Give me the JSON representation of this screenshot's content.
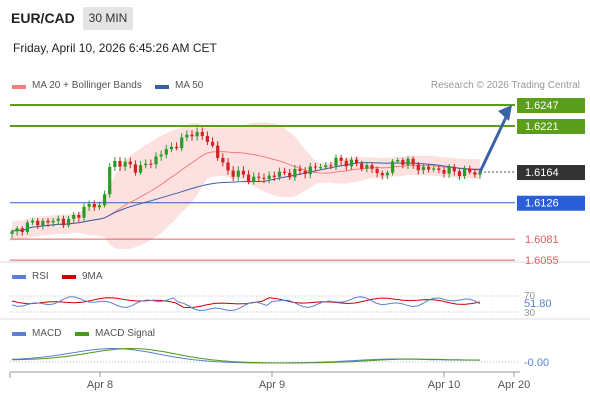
{
  "header": {
    "symbol": "EUR/CAD",
    "timeframe": "30 MIN",
    "datetime": "Friday, April 10, 2026 6:45:26 AM CET"
  },
  "credit": "Research © 2026 Trading Central",
  "colors": {
    "green_level": "#5a9e1c",
    "blue_level": "#2a5fd8",
    "red_level": "#e06060",
    "price_tag": "#333333",
    "ma20": "#f08080",
    "band_fill": "#fde0e0",
    "ma50": "#3b5ea8",
    "candle_up": "#2a9a2a",
    "candle_down": "#d32020",
    "arrow": "#3a63a8",
    "rsi": "#5b7fd1",
    "rsi_ma": "#cc0000",
    "macd": "#5b7fd1",
    "macd_signal": "#4a9a1a"
  },
  "chart_data": {
    "type": "candlestick",
    "title": "EUR/CAD",
    "x_ticks": [
      "Apr 8",
      "Apr 9",
      "Apr 10",
      "Apr 20"
    ],
    "legend": [
      {
        "name": "MA 20 + Bollinger Bands",
        "color": "#f08080"
      },
      {
        "name": "MA 50",
        "color": "#3b5ea8"
      }
    ],
    "levels": [
      {
        "value": 1.6247,
        "label": "1.6247",
        "kind": "resistance"
      },
      {
        "value": 1.6221,
        "label": "1.6221",
        "kind": "resistance"
      },
      {
        "value": 1.6164,
        "label": "1.6164",
        "kind": "last_price"
      },
      {
        "value": 1.6126,
        "label": "1.6126",
        "kind": "pivot"
      },
      {
        "value": 1.6081,
        "label": "1.6081",
        "kind": "support"
      },
      {
        "value": 1.6055,
        "label": "1.6055",
        "kind": "support"
      }
    ],
    "close_path": [
      1.6088,
      1.6095,
      1.61,
      1.6103,
      1.6101,
      1.6106,
      1.61,
      1.611,
      1.6118,
      1.6125,
      1.612,
      1.6178,
      1.6175,
      1.6172,
      1.6168,
      1.6173,
      1.6182,
      1.619,
      1.6196,
      1.6204,
      1.6214,
      1.6208,
      1.6202,
      1.618,
      1.6165,
      1.6162,
      1.6158,
      1.6155,
      1.6157,
      1.616,
      1.6162,
      1.6163,
      1.6164,
      1.6168,
      1.617,
      1.6172,
      1.6178,
      1.6177,
      1.6174,
      1.6172,
      1.6168,
      1.6158,
      1.617,
      1.618,
      1.6176,
      1.617,
      1.6168,
      1.6167,
      1.6166,
      1.6165,
      1.6164,
      1.6163,
      1.6164
    ],
    "projection": {
      "from": 1.6164,
      "to": 1.6247
    },
    "rsi": {
      "label": "RSI",
      "ma_label": "9MA",
      "value": "51.80",
      "levels": [
        "70",
        "30"
      ]
    },
    "macd": {
      "label": "MACD",
      "signal_label": "MACD Signal",
      "value": "-0.00"
    }
  }
}
